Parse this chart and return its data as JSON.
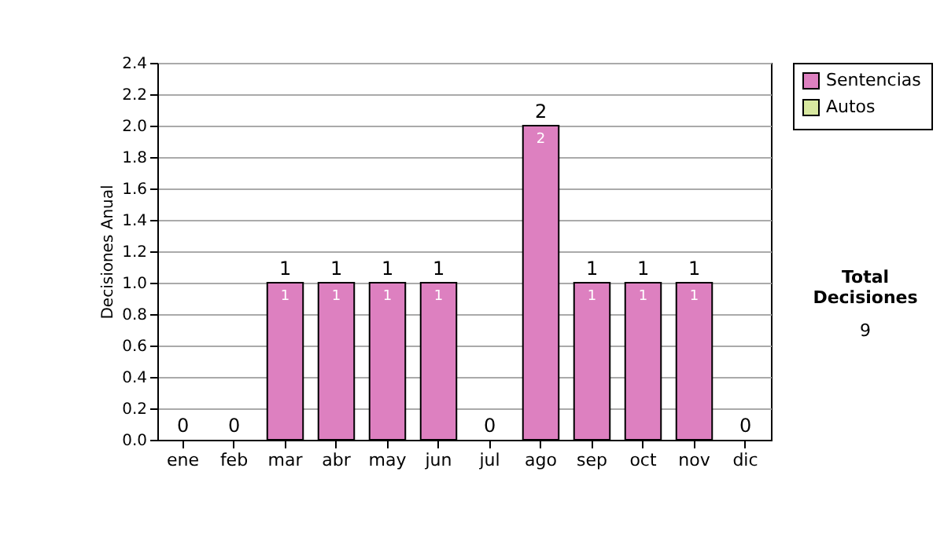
{
  "chart_data": {
    "type": "bar",
    "ylabel": "Decisiones Anual",
    "categories": [
      "ene",
      "feb",
      "mar",
      "abr",
      "may",
      "jun",
      "jul",
      "ago",
      "sep",
      "oct",
      "nov",
      "dic"
    ],
    "series": [
      {
        "name": "Sentencias",
        "color": "#dd80c0",
        "values": [
          0,
          0,
          1,
          1,
          1,
          1,
          0,
          2,
          1,
          1,
          1,
          0
        ],
        "value_labels": [
          null,
          null,
          "1",
          "1",
          "1",
          "1",
          null,
          "2",
          "1",
          "1",
          "1",
          null
        ]
      },
      {
        "name": "Autos",
        "color": "#d8e8a0",
        "values": [
          0,
          0,
          0,
          0,
          0,
          0,
          0,
          0,
          0,
          0,
          0,
          0
        ]
      }
    ],
    "stacked": true,
    "totals": [
      "0",
      "0",
      "1",
      "1",
      "1",
      "1",
      "0",
      "2",
      "1",
      "1",
      "1",
      "0"
    ],
    "ylim": [
      0,
      2.4
    ],
    "yticks": [
      {
        "value": 0,
        "label": "0.0"
      },
      0.2,
      0.4,
      0.6,
      0.8,
      {
        "value": 1,
        "label": "1.0"
      },
      1.2,
      1.4,
      1.6,
      1.8,
      {
        "value": 2,
        "label": "2.0"
      },
      2.2,
      2.4
    ],
    "grid": "y",
    "legend": "right",
    "annotations": [
      "Total Decisiones",
      "9"
    ]
  }
}
